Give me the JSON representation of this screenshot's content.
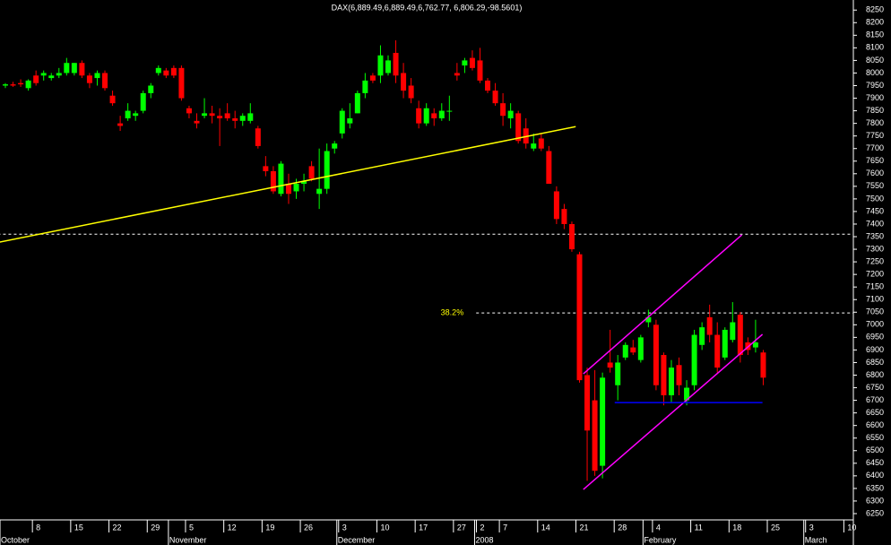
{
  "chart_data": {
    "type": "candlestick",
    "title": "DAX(6,889.49,6,889.49,6,762.77, 6,806.29,-98.5601)",
    "categories": [
      null,
      null,
      null,
      null,
      "8",
      null,
      null,
      null,
      null,
      "15",
      null,
      null,
      null,
      null,
      "22",
      null,
      null,
      null,
      null,
      "29",
      null,
      null,
      null,
      null,
      "5",
      null,
      null,
      null,
      null,
      "12",
      null,
      null,
      null,
      null,
      "19",
      null,
      null,
      null,
      null,
      "26",
      null,
      null,
      null,
      null,
      "3",
      null,
      null,
      null,
      null,
      "10",
      null,
      null,
      null,
      null,
      "17",
      null,
      null,
      null,
      null,
      "27",
      null,
      null,
      "2",
      null,
      null,
      "7",
      null,
      null,
      null,
      null,
      "14",
      null,
      null,
      null,
      null,
      "21",
      null,
      null,
      null,
      null,
      "28",
      null,
      null,
      null,
      null,
      "4",
      null,
      null,
      null,
      null,
      "11",
      null,
      null,
      null,
      null,
      "18",
      null,
      null,
      null,
      null,
      "25",
      null,
      null,
      null,
      null,
      "3",
      null,
      null,
      null,
      null,
      "10",
      null
    ],
    "month_labels": [
      "October",
      null,
      null,
      null,
      null,
      null,
      null,
      null,
      null,
      null,
      null,
      null,
      null,
      null,
      null,
      null,
      null,
      null,
      null,
      null,
      null,
      null,
      "November",
      null,
      null,
      null,
      null,
      null,
      null,
      null,
      null,
      null,
      null,
      null,
      null,
      null,
      null,
      null,
      null,
      null,
      null,
      null,
      null,
      null,
      "December",
      null,
      null,
      null,
      null,
      null,
      null,
      null,
      null,
      null,
      null,
      null,
      null,
      null,
      null,
      null,
      null,
      null,
      "2008",
      null,
      null,
      null,
      null,
      null,
      null,
      null,
      null,
      null,
      null,
      null,
      null,
      null,
      null,
      null,
      null,
      null,
      null,
      null,
      null,
      null,
      "February",
      null,
      null,
      null,
      null,
      null,
      null,
      null,
      null,
      null,
      null,
      null,
      null,
      null,
      null,
      null,
      null,
      null,
      null,
      null,
      null,
      "March",
      null,
      null,
      null,
      null,
      null,
      null
    ],
    "open": [
      7950,
      7955,
      7960,
      7940,
      7990,
      7990,
      7980,
      7990,
      8000,
      8000,
      8040,
      7990,
      7980,
      8000,
      7910,
      7800,
      7820,
      7830,
      7850,
      7920,
      8000,
      8010,
      8020,
      8020,
      7860,
      7810,
      7830,
      7840,
      7830,
      7840,
      7820,
      7810,
      7810,
      7780,
      7630,
      7610,
      7520,
      7560,
      7530,
      7560,
      7630,
      7520,
      7540,
      7700,
      7760,
      7800,
      7840,
      7920,
      7990,
      7990,
      8000,
      8080,
      8000,
      7950,
      7860,
      7800,
      7840,
      7820,
      7850,
      8000,
      8030,
      8060,
      8050,
      7970,
      7930,
      7880,
      7820,
      7840,
      7780,
      7700,
      7740,
      7690,
      7530,
      7460,
      7400,
      7280,
      6800,
      6700,
      6440,
      6850,
      6760,
      6870,
      6910,
      6860,
      7010,
      7000,
      6880,
      6720,
      6840,
      6700,
      6760,
      6920,
      7030,
      6960,
      6870,
      6940,
      7040,
      6930,
      6910,
      6890,
      null,
      null,
      null,
      null,
      null,
      null,
      null,
      null,
      null,
      null,
      null,
      null
    ],
    "high": [
      7960,
      7965,
      7975,
      7975,
      8010,
      8010,
      8000,
      8020,
      8060,
      8040,
      8050,
      8000,
      8010,
      8010,
      7930,
      7830,
      7880,
      7850,
      7930,
      7960,
      8030,
      8020,
      8030,
      8030,
      7870,
      7840,
      7900,
      7870,
      7860,
      7880,
      7850,
      7840,
      7880,
      7790,
      7670,
      7630,
      7650,
      7600,
      7580,
      7600,
      7650,
      7700,
      7720,
      7730,
      7860,
      7880,
      7930,
      8000,
      8000,
      8110,
      8070,
      8130,
      8040,
      7980,
      7890,
      7880,
      7860,
      7880,
      7910,
      8040,
      8060,
      8090,
      8100,
      7980,
      7960,
      7920,
      7880,
      7850,
      7820,
      7760,
      7760,
      7710,
      7550,
      7480,
      7410,
      7290,
      6830,
      6820,
      6810,
      6980,
      6880,
      6930,
      6940,
      6960,
      7060,
      7020,
      6890,
      6860,
      6870,
      6780,
      6980,
      7010,
      7080,
      7010,
      6990,
      7090,
      7050,
      6950,
      7020,
      6900,
      null,
      null,
      null,
      null,
      null,
      null,
      null,
      null,
      null,
      null,
      null,
      null
    ],
    "low": [
      7940,
      7945,
      7945,
      7930,
      7950,
      7970,
      7970,
      7980,
      7990,
      7990,
      7980,
      7940,
      7950,
      7930,
      7870,
      7770,
      7810,
      7810,
      7840,
      7900,
      7990,
      7980,
      7980,
      7890,
      7820,
      7780,
      7820,
      7800,
      7710,
      7810,
      7780,
      7790,
      7800,
      7700,
      7590,
      7520,
      7510,
      7480,
      7500,
      7530,
      7570,
      7460,
      7520,
      7680,
      7740,
      7780,
      7840,
      7900,
      7960,
      7960,
      7990,
      7960,
      7900,
      7880,
      7780,
      7790,
      7790,
      7810,
      7810,
      7970,
      8000,
      8010,
      7960,
      7920,
      7870,
      7790,
      7780,
      7720,
      7700,
      7690,
      7690,
      7560,
      7400,
      7380,
      7290,
      6770,
      6380,
      6400,
      6390,
      6810,
      6700,
      6860,
      6880,
      6850,
      6990,
      6740,
      6680,
      6690,
      6720,
      6680,
      6740,
      6900,
      6930,
      6810,
      6860,
      6930,
      6850,
      6880,
      6890,
      6760,
      null,
      null,
      null,
      null,
      null,
      null,
      null,
      null,
      null,
      null,
      null,
      null
    ],
    "close": [
      7955,
      7950,
      7955,
      7970,
      7960,
      8000,
      7990,
      8000,
      8040,
      8040,
      7990,
      7960,
      8000,
      7940,
      7880,
      7790,
      7850,
      7840,
      7920,
      7950,
      8020,
      7990,
      7990,
      7900,
      7840,
      7800,
      7840,
      7830,
      7820,
      7820,
      7810,
      7830,
      7840,
      7710,
      7610,
      7530,
      7640,
      7520,
      7560,
      7570,
      7580,
      7540,
      7690,
      7720,
      7850,
      7820,
      7920,
      7970,
      7970,
      8070,
      8050,
      7990,
      7930,
      7900,
      7800,
      7860,
      7820,
      7850,
      7850,
      7990,
      8050,
      8020,
      7970,
      7930,
      7880,
      7830,
      7850,
      7730,
      7720,
      7720,
      7700,
      7560,
      7420,
      7400,
      7300,
      6780,
      6580,
      6420,
      6790,
      6830,
      6850,
      6920,
      6890,
      6950,
      7030,
      6760,
      6720,
      6830,
      6760,
      6750,
      6960,
      6990,
      6960,
      6830,
      6980,
      7010,
      6880,
      6900,
      6930,
      6790,
      null,
      null,
      null,
      null,
      null,
      null,
      null,
      null,
      null,
      null,
      null,
      null
    ],
    "up_color": "#00ff00",
    "down_color": "#ff0000",
    "ylim": [
      6225,
      8290
    ],
    "yticks": [
      6250,
      6300,
      6350,
      6400,
      6450,
      6500,
      6550,
      6600,
      6650,
      6700,
      6750,
      6800,
      6850,
      6900,
      6950,
      7000,
      7050,
      7100,
      7150,
      7200,
      7250,
      7300,
      7350,
      7400,
      7450,
      7500,
      7550,
      7600,
      7650,
      7700,
      7750,
      7800,
      7850,
      7900,
      7950,
      8000,
      8050,
      8100,
      8150,
      8200,
      8250
    ],
    "lines": [
      {
        "color": "#ffff00",
        "x": [
          -0.8,
          74.5
        ],
        "y": [
          7328,
          7787
        ]
      },
      {
        "color": "#ff00ff",
        "x": [
          75.5,
          96.2
        ],
        "y": [
          6805,
          7357
        ]
      },
      {
        "color": "#ff00ff",
        "x": [
          75.5,
          98.9
        ],
        "y": [
          6346,
          6962
        ]
      },
      {
        "color": "#0000ff",
        "x": [
          79.6,
          98.9
        ],
        "y": [
          6691,
          6691
        ]
      }
    ],
    "hlines": [
      {
        "value": 7360,
        "color": "#ffffff",
        "start": -1
      },
      {
        "value": 7047,
        "color": "#ffffff",
        "start": 61.5,
        "label": "38.2%",
        "label_color": "#ffff00"
      }
    ]
  }
}
